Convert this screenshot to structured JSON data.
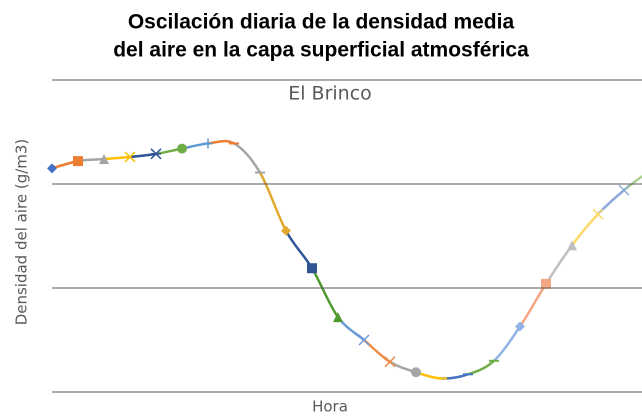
{
  "chart_data": {
    "type": "line",
    "title": [
      "Oscilación diaria de la densidad media",
      "del aire en la capa superficial atmosférica"
    ],
    "subtitle": "El Brinco",
    "y_label": "Densidad del aire (g/m3)",
    "x_label": "Hora",
    "categories": [
      null,
      null,
      null,
      null,
      null,
      null,
      null,
      null,
      null,
      null,
      null,
      null,
      null,
      null,
      null,
      null,
      null,
      null,
      null,
      null,
      null,
      null,
      null,
      null
    ],
    "values": [
      2.15,
      2.22,
      2.24,
      2.26,
      2.29,
      2.34,
      2.39,
      2.39,
      2.11,
      1.55,
      1.19,
      0.72,
      0.5,
      0.29,
      0.19,
      0.13,
      0.17,
      0.3,
      0.63,
      1.04,
      1.41,
      1.71,
      1.94,
      2.13
    ],
    "colors": [
      "#4472C4",
      "#ED7D31",
      "#A5A5A5",
      "#FFC000",
      "#2F5597",
      "#70AD47",
      "#5B9BD5",
      "#ED7D31",
      "#A5A5A5",
      "#E0A82E",
      "#2F5597",
      "#4E9A2F",
      "#6A9BD8",
      "#F08C4A",
      "#A5A5A5",
      "#FFC000",
      "#4472C4",
      "#70AD47",
      "#8FB4E3",
      "#F4A582",
      "#BFBFBF",
      "#FFD966",
      "#8EA9DB",
      "#A9D18E"
    ],
    "markers": [
      "diamond",
      "square",
      "triangle",
      "x",
      "star",
      "circle",
      "plus",
      "dash",
      "dash",
      "diamond",
      "square",
      "triangle",
      "x",
      "x",
      "circle",
      "dash",
      "dash",
      "dash",
      "diamond",
      "square",
      "triangle",
      "x",
      "x",
      "x"
    ],
    "ylim": [
      0,
      3
    ],
    "yticks": [
      0,
      1,
      2,
      3
    ],
    "grid": true
  }
}
